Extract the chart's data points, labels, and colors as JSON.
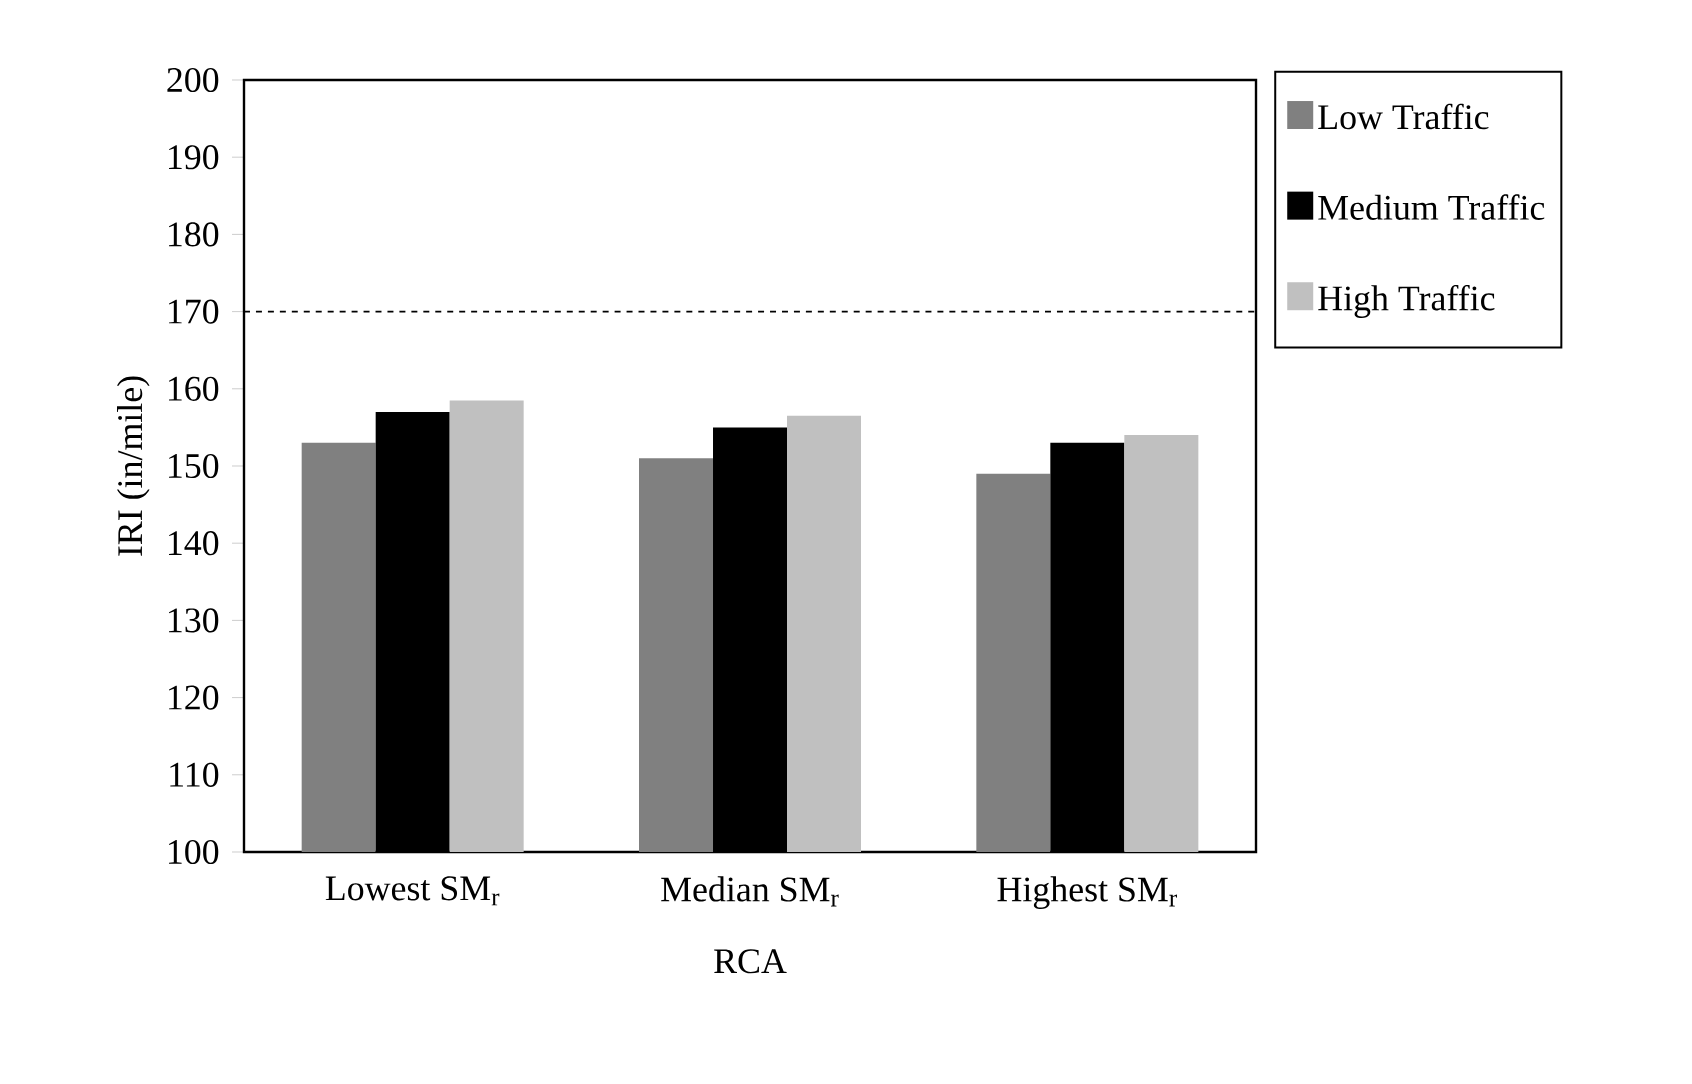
{
  "chart_data": {
    "type": "bar",
    "xlabel": "RCA",
    "ylabel": "IRI (in/mile)",
    "categories": [
      "Lowest SM$_{r}$",
      "Median SM$_{r}$",
      "Highest SM$_{r}$"
    ],
    "series": [
      {
        "name": "Low Traffic",
        "color": "#808080",
        "values": [
          153,
          151,
          149
        ]
      },
      {
        "name": "Medium Traffic",
        "color": "#000000",
        "values": [
          157,
          155,
          153
        ]
      },
      {
        "name": "High Traffic",
        "color": "#c0c0c0",
        "values": [
          158.5,
          156.5,
          154
        ]
      }
    ],
    "ylim": [
      100,
      200
    ],
    "yticks": [
      100,
      110,
      120,
      130,
      140,
      150,
      160,
      170,
      180,
      190,
      200
    ],
    "ref_lines": [
      {
        "axis": "y",
        "value": 170,
        "line_style": "dashed"
      }
    ],
    "legend": "right",
    "grid": false
  }
}
